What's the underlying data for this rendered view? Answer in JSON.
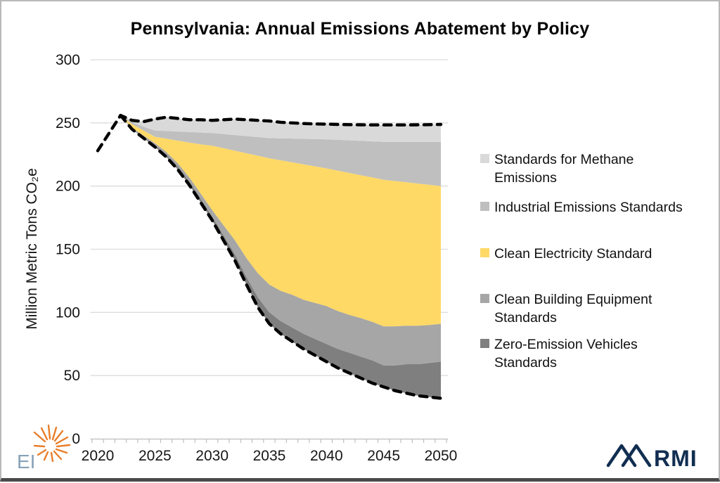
{
  "chart": {
    "title": "Pennsylvania: Annual Emissions Abatement by Policy",
    "y_axis_label": "Million Metric Tons CO₂e"
  },
  "legend": {
    "items": [
      {
        "label": "Standards for Methane Emissions",
        "color": "#d9d9d9"
      },
      {
        "label": "Industrial Emissions Standards",
        "color": "#bfbfbf"
      },
      {
        "label": "Clean Electricity Standard",
        "color": "#ffd966"
      },
      {
        "label": "Clean Building Equipment Standards",
        "color": "#a6a6a6"
      },
      {
        "label": "Zero-Emission Vehicles Standards",
        "color": "#7f7f7f"
      }
    ]
  },
  "logos": {
    "ei_text": "EI",
    "rmi_text": "RMI"
  },
  "chart_data": {
    "type": "area",
    "title": "Pennsylvania: Annual Emissions Abatement by Policy",
    "xlabel": "",
    "ylabel": "Million Metric Tons CO₂e",
    "ylim": [
      0,
      300
    ],
    "grid": "horizontal",
    "legend_position": "right",
    "x_axis": {
      "start": 2020,
      "end": 2050,
      "tick_labels": [
        2020,
        2025,
        2030,
        2035,
        2040,
        2045,
        2050
      ]
    },
    "y_axis": {
      "ticks": [
        0,
        50,
        100,
        150,
        200,
        250,
        300
      ]
    },
    "note": "Stacked abatement wedges between dashed baseline (top) and dashed resulting-emissions line (bottom); yearly values 2020-2050 in Million Metric Tons CO2e",
    "boundaries": {
      "b0_resulting_emissions": [
        228,
        242,
        256,
        245,
        238,
        231,
        223,
        213,
        201,
        187,
        173,
        157,
        141,
        122,
        104,
        91,
        83,
        77,
        71,
        66,
        61,
        56,
        52,
        48,
        44,
        41,
        38,
        36,
        34,
        33,
        32
      ],
      "b1_zev_top": [
        228,
        242,
        256,
        245.5,
        239,
        232.5,
        225,
        215.5,
        204,
        190,
        176,
        161,
        146,
        128,
        112,
        100,
        93,
        88,
        83,
        79,
        75,
        71,
        68,
        65,
        62,
        58,
        58,
        59,
        59,
        60,
        61
      ],
      "b2_building_top": [
        228,
        242,
        256,
        246,
        240,
        234,
        227,
        218,
        207,
        194,
        181,
        169,
        157,
        143,
        131,
        122,
        117,
        114,
        110,
        107.5,
        105,
        101,
        98,
        95.5,
        92.5,
        89,
        89,
        89.5,
        89.5,
        90,
        91
      ],
      "b3_electricity_top": [
        228,
        242,
        256,
        249,
        244,
        239,
        237.5,
        236,
        234.5,
        233,
        232,
        230,
        228,
        226,
        224,
        222,
        220.4,
        218.8,
        217.2,
        215.6,
        214,
        212.2,
        210.4,
        208.6,
        206.8,
        205,
        204,
        203,
        202,
        201,
        200
      ],
      "b4_industrial_top": [
        228,
        242,
        256,
        250.5,
        247,
        244,
        243.6,
        243.2,
        242.8,
        242.4,
        242,
        241.2,
        240.4,
        239.6,
        238.8,
        238,
        237.8,
        237.6,
        237.4,
        237.2,
        237,
        236.6,
        236.2,
        235.8,
        235.4,
        235,
        235,
        235,
        235,
        235,
        235
      ],
      "b5_baseline": [
        228,
        242,
        256,
        252,
        251,
        253,
        254.5,
        253.5,
        252.5,
        252.5,
        252,
        252.5,
        253,
        252.5,
        252,
        251.5,
        250.5,
        250,
        249.5,
        249.2,
        249,
        248.8,
        248.6,
        248.5,
        248.4,
        248.4,
        248.4,
        248.4,
        248.5,
        248.6,
        248.8
      ]
    },
    "series": [
      {
        "name": "Zero-Emission Vehicles Standards",
        "color": "#7f7f7f",
        "lower": "b0_resulting_emissions",
        "upper": "b1_zev_top"
      },
      {
        "name": "Clean Building Equipment Standards",
        "color": "#a6a6a6",
        "lower": "b1_zev_top",
        "upper": "b2_building_top"
      },
      {
        "name": "Clean Electricity Standard",
        "color": "#ffd966",
        "lower": "b2_building_top",
        "upper": "b3_electricity_top"
      },
      {
        "name": "Industrial Emissions Standards",
        "color": "#bfbfbf",
        "lower": "b3_electricity_top",
        "upper": "b4_industrial_top"
      },
      {
        "name": "Standards for Methane Emissions",
        "color": "#d9d9d9",
        "lower": "b4_industrial_top",
        "upper": "b5_baseline"
      }
    ],
    "dashed_lines": [
      {
        "name": "baseline-emissions",
        "boundary": "b5_baseline",
        "start_year": 2020
      },
      {
        "name": "emissions-with-policies",
        "boundary": "b0_resulting_emissions",
        "start_year": 2022
      }
    ]
  }
}
